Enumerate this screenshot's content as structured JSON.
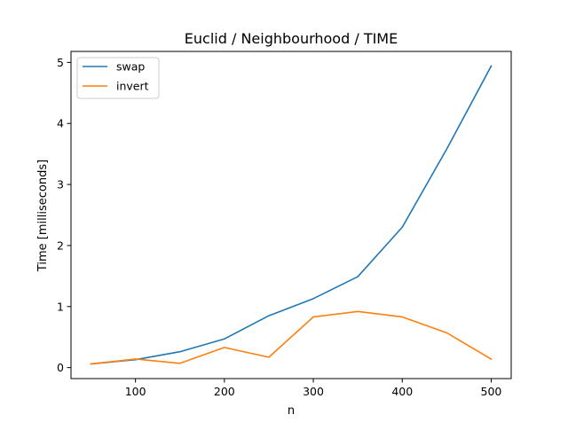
{
  "chart_data": {
    "type": "line",
    "title": "Euclid / Neighbourhood / TIME",
    "xlabel": "n",
    "ylabel": "Time [milliseconds]",
    "xlim": [
      27.5,
      522.5
    ],
    "ylim": [
      -0.18,
      5.18
    ],
    "x_ticks": [
      100,
      200,
      300,
      400,
      500
    ],
    "y_ticks": [
      0,
      1,
      2,
      3,
      4,
      5
    ],
    "grid": false,
    "legend_position": "upper-left",
    "x": [
      50,
      100,
      150,
      200,
      250,
      300,
      350,
      400,
      450,
      500
    ],
    "series": [
      {
        "name": "swap",
        "color": "#1f77b4",
        "values": [
          0.06,
          0.13,
          0.26,
          0.47,
          0.85,
          1.13,
          1.49,
          2.3,
          3.58,
          4.94
        ]
      },
      {
        "name": "invert",
        "color": "#ff7f0e",
        "values": [
          0.06,
          0.14,
          0.07,
          0.33,
          0.17,
          0.83,
          0.92,
          0.83,
          0.57,
          0.14
        ]
      }
    ]
  }
}
